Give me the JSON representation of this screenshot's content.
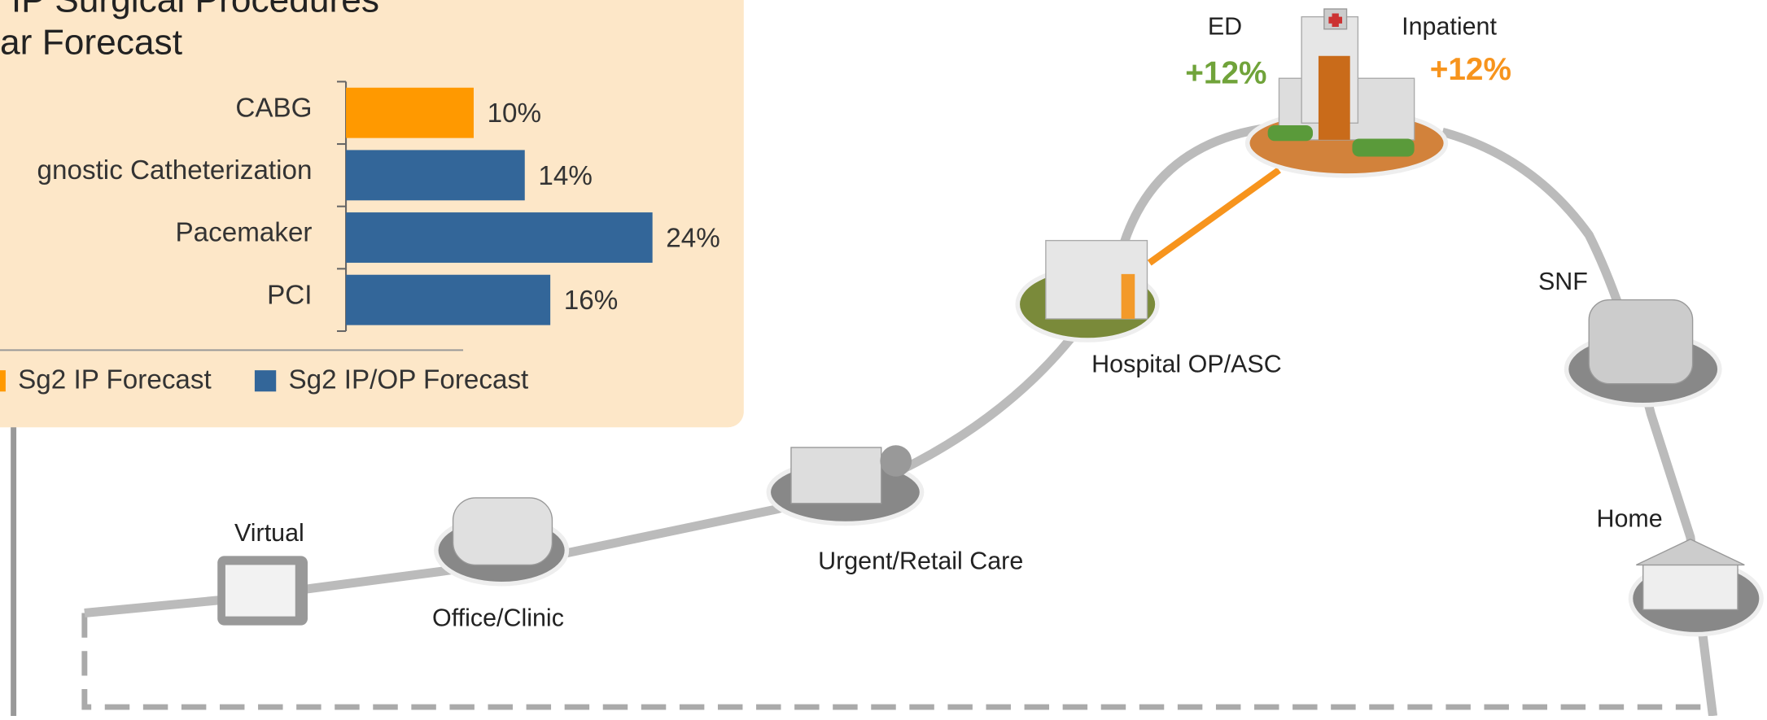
{
  "chart_data": {
    "type": "bar",
    "orientation": "horizontal",
    "title": [
      "IP Surgical Procedures",
      "ar Forecast"
    ],
    "categories": [
      "CABG",
      "gnostic Catheterization",
      "Pacemaker",
      "PCI"
    ],
    "values": [
      10,
      14,
      24,
      16
    ],
    "value_labels": [
      "10%",
      "14%",
      "24%",
      "16%"
    ],
    "colors": [
      "#ff9900",
      "#336699",
      "#336699",
      "#336699"
    ],
    "xlim": [
      0,
      30
    ],
    "legend": [
      {
        "name": "Sg2 IP Forecast",
        "color": "#ff9900"
      },
      {
        "name": "Sg2 IP/OP Forecast",
        "color": "#336699"
      }
    ]
  },
  "diagram": {
    "labels": {
      "ed": "ED",
      "ed_change": "+12%",
      "inpatient": "Inpatient",
      "inpatient_change": "+12%",
      "snf": "SNF",
      "hospital_op": "Hospital OP/ASC",
      "home": "Home",
      "urgent": "Urgent/Retail Care",
      "virtual": "Virtual",
      "office": "Office/Clinic"
    }
  }
}
